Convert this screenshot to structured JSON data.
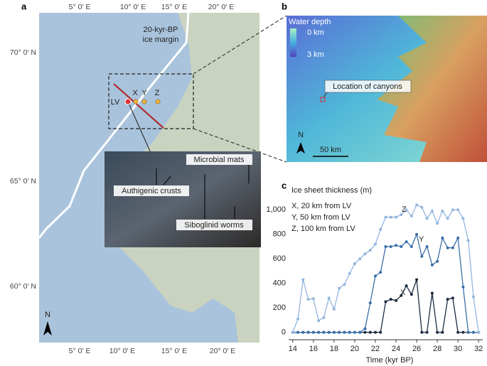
{
  "panel_a": {
    "label": "a",
    "lon_labels": [
      "5° 0′ E",
      "10° 0′ E",
      "15° 0′ E",
      "20° 0′ E"
    ],
    "lat_labels": [
      "70° 0′ N",
      "65° 0′ N",
      "60° 0′ N"
    ],
    "ice_margin": [
      "20-kyr-BP",
      "ice margin"
    ],
    "sites": [
      "LV",
      "X",
      "Y",
      "Z"
    ],
    "photo_labels": [
      "Microbial mats",
      "Authigenic crusts",
      "Siboglinid worms"
    ],
    "north": "N"
  },
  "panel_b": {
    "label": "b",
    "legend_title": "Water depth",
    "legend_labels": [
      "0 km",
      "3 km"
    ],
    "annotation": "Location of canyons",
    "north": "N",
    "scale": "50 km"
  },
  "chart_data": {
    "type": "line",
    "panel_label": "c",
    "title": "Ice sheet thickness (m)",
    "x_label": "Time (kyr BP)",
    "x": [
      14,
      14.5,
      15,
      15.5,
      16,
      16.5,
      17,
      17.5,
      18,
      18.5,
      19,
      19.5,
      20,
      20.5,
      21,
      21.5,
      22,
      22.5,
      23,
      23.5,
      24,
      24.5,
      25,
      25.5,
      26,
      26.5,
      27,
      27.5,
      28,
      28.5,
      29,
      29.5,
      30,
      30.5,
      31,
      31.5,
      32
    ],
    "xlim": [
      13.6,
      32.4
    ],
    "xticks": [
      14,
      16,
      18,
      20,
      22,
      24,
      26,
      28,
      30,
      32
    ],
    "ylim": [
      -60,
      1100
    ],
    "yticks": [
      0,
      200,
      400,
      600,
      800,
      {
        "value": 1000,
        "label": "1,000"
      }
    ],
    "series": [
      {
        "name": "X,  20 km from LV",
        "label": "X",
        "color": "#1c2b3f",
        "values": [
          0,
          0,
          0,
          0,
          0,
          0,
          0,
          0,
          0,
          0,
          0,
          0,
          0,
          0,
          0,
          0,
          0,
          0,
          250,
          270,
          260,
          300,
          380,
          310,
          430,
          0,
          0,
          320,
          0,
          0,
          270,
          280,
          0,
          0,
          0,
          0,
          0
        ]
      },
      {
        "name": "Y,  50 km from LV",
        "label": "Y",
        "color": "#3a6fa8",
        "values": [
          0,
          0,
          0,
          0,
          0,
          0,
          0,
          0,
          0,
          0,
          0,
          0,
          0,
          0,
          30,
          240,
          460,
          490,
          700,
          700,
          710,
          700,
          740,
          700,
          800,
          620,
          700,
          550,
          580,
          770,
          690,
          690,
          770,
          370,
          0,
          0,
          0
        ]
      },
      {
        "name": "Z,  100 km from LV",
        "label": "Z",
        "color": "#93b6de",
        "values": [
          0,
          110,
          430,
          270,
          275,
          95,
          120,
          280,
          190,
          360,
          390,
          480,
          560,
          600,
          640,
          670,
          720,
          840,
          940,
          940,
          940,
          960,
          1000,
          950,
          1040,
          1020,
          930,
          990,
          890,
          990,
          930,
          1000,
          1000,
          930,
          750,
          290,
          0
        ]
      }
    ]
  }
}
